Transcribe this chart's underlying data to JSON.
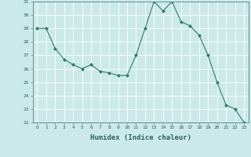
{
  "xlabel": "Humidex (Indice chaleur)",
  "x": [
    0,
    1,
    2,
    3,
    4,
    5,
    6,
    7,
    8,
    9,
    10,
    11,
    12,
    13,
    14,
    15,
    16,
    17,
    18,
    19,
    20,
    21,
    22,
    23
  ],
  "y": [
    29.0,
    29.0,
    27.5,
    26.7,
    26.3,
    26.0,
    26.3,
    25.8,
    25.7,
    25.5,
    25.5,
    27.0,
    29.0,
    31.0,
    30.3,
    31.0,
    29.5,
    29.2,
    28.5,
    27.0,
    25.0,
    23.3,
    23.0,
    22.0
  ],
  "ylim": [
    22,
    31
  ],
  "yticks": [
    22,
    23,
    24,
    25,
    26,
    27,
    28,
    29,
    30,
    31
  ],
  "xticks": [
    0,
    1,
    2,
    3,
    4,
    5,
    6,
    7,
    8,
    9,
    10,
    11,
    12,
    13,
    14,
    15,
    16,
    17,
    18,
    19,
    20,
    21,
    22,
    23
  ],
  "line_color": "#2e7d6e",
  "marker": "D",
  "marker_size": 2,
  "bg_color": "#cce9e9",
  "grid_color": "#ffffff",
  "tick_label_color": "#2e6060",
  "xlabel_color": "#2e6060",
  "spine_color": "#5a9090"
}
